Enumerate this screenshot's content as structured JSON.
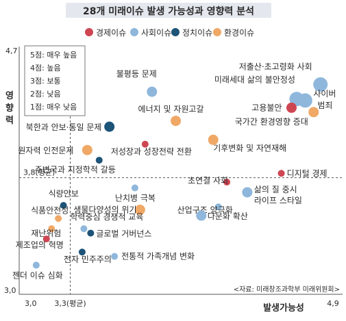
{
  "chart_data": {
    "type": "scatter",
    "title": "28개 미래이슈 발생 가능성과 영향력 분석",
    "xlabel": "발생가능성",
    "ylabel": "영향력",
    "xlim": [
      3.0,
      4.9
    ],
    "ylim": [
      3.0,
      4.7
    ],
    "x_ticks": [
      "3,0",
      "3,3(평균)",
      "4,9"
    ],
    "y_ticks": [
      "4,7",
      "3,8(평균)",
      "3,0"
    ],
    "avg_x": 3.3,
    "avg_y": 3.8,
    "legend_position": "top",
    "source": "<자료: 미래창조과학부 미래위원회>",
    "scale_box": {
      "items": [
        "5점: 매우 높음",
        "4점: 높음",
        "3점: 보통",
        "2점: 낮음",
        "1점: 매우 낮음"
      ]
    },
    "categories": [
      {
        "key": "econ",
        "name": "경제이슈",
        "color": "#cf4653"
      },
      {
        "key": "social",
        "name": "사회이슈",
        "color": "#8fb7dc"
      },
      {
        "key": "politic",
        "name": "정치이슈",
        "color": "#1d5478"
      },
      {
        "key": "env",
        "name": "환경이슈",
        "color": "#f0a866"
      }
    ],
    "points": [
      {
        "label": "저출산·초고령화 사회",
        "x": 4.77,
        "y": 4.44,
        "cat": "social",
        "size": "large"
      },
      {
        "label": "미래세대 삶의 불안정성",
        "x": 4.63,
        "y": 4.34,
        "cat": "social",
        "size": "large"
      },
      {
        "label": "사이버 범죄",
        "x": 4.68,
        "y": 4.33,
        "cat": "social",
        "size": "large"
      },
      {
        "label": "고용불안",
        "x": 4.6,
        "y": 4.28,
        "cat": "econ",
        "size": "medium"
      },
      {
        "label": "국가간 환경영향 증대",
        "x": 4.73,
        "y": 4.25,
        "cat": "env",
        "size": "medium"
      },
      {
        "label": "불평등 문제",
        "x": 3.78,
        "y": 4.39,
        "cat": "social",
        "size": "medium"
      },
      {
        "label": "에너지 및 자원고갈",
        "x": 3.92,
        "y": 4.19,
        "cat": "env",
        "size": "medium"
      },
      {
        "label": "기후변화 및 자연재해",
        "x": 4.14,
        "y": 4.06,
        "cat": "env",
        "size": "medium"
      },
      {
        "label": "북한과 안보·통일 문제",
        "x": 3.53,
        "y": 4.15,
        "cat": "politic",
        "size": "medium"
      },
      {
        "label": "저성장과 성장전략 전환",
        "x": 3.74,
        "y": 4.03,
        "cat": "econ",
        "size": "small"
      },
      {
        "label": "원자력 인전문제",
        "x": 3.4,
        "y": 3.99,
        "cat": "env",
        "size": "medium"
      },
      {
        "label": "주변국과 지정학적 갈등",
        "x": 3.47,
        "y": 3.92,
        "cat": "politic",
        "size": "small"
      },
      {
        "label": "디지털 경제",
        "x": 4.54,
        "y": 3.83,
        "cat": "econ",
        "size": "small"
      },
      {
        "label": "초연결 사회",
        "x": 4.22,
        "y": 3.77,
        "cat": "econ",
        "size": "small"
      },
      {
        "label": "난치병 극복",
        "x": 3.68,
        "y": 3.73,
        "cat": "social",
        "size": "small"
      },
      {
        "label": "삶의 질 중시 라이프 스타일",
        "x": 4.34,
        "y": 3.7,
        "cat": "social",
        "size": "medium"
      },
      {
        "label": "식량안보",
        "x": 3.26,
        "y": 3.61,
        "cat": "politic",
        "size": "small"
      },
      {
        "label": "산업구조 양극화",
        "x": 4.17,
        "y": 3.6,
        "cat": "social",
        "size": "small"
      },
      {
        "label": "생물다양성의 위기",
        "x": 3.71,
        "y": 3.58,
        "cat": "env",
        "size": "medium"
      },
      {
        "label": "식품안전성",
        "x": 3.23,
        "y": 3.52,
        "cat": "env",
        "size": "small"
      },
      {
        "label": "다문화 확산",
        "x": 4.07,
        "y": 3.54,
        "cat": "social",
        "size": "medium"
      },
      {
        "label": "학력중심 경쟁적 교육",
        "x": 3.38,
        "y": 3.45,
        "cat": "social",
        "size": "small"
      },
      {
        "label": "재난위험",
        "x": 3.19,
        "y": 3.45,
        "cat": "env",
        "size": "small"
      },
      {
        "label": "글로벌 거버넌스",
        "x": 3.42,
        "y": 3.42,
        "cat": "politic",
        "size": "small"
      },
      {
        "label": "제조업의 혁명",
        "x": 3.16,
        "y": 3.38,
        "cat": "econ",
        "size": "small"
      },
      {
        "label": "전자 민주주의",
        "x": 3.37,
        "y": 3.29,
        "cat": "politic",
        "size": "small"
      },
      {
        "label": "전통적 가족개념 변화",
        "x": 3.56,
        "y": 3.26,
        "cat": "social",
        "size": "small"
      },
      {
        "label": "젠더 이슈 심화",
        "x": 3.1,
        "y": 3.2,
        "cat": "social",
        "size": "small"
      }
    ]
  }
}
